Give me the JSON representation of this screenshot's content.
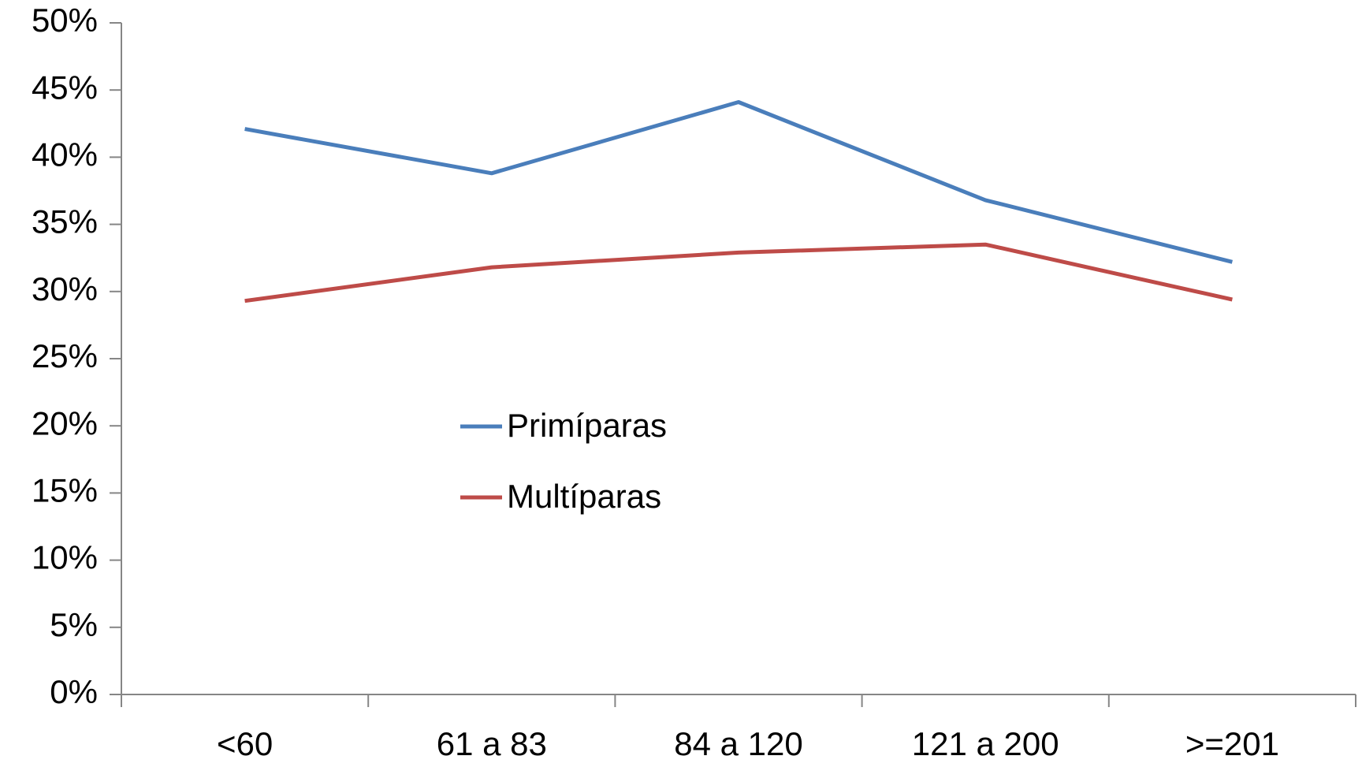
{
  "chart_data": {
    "type": "line",
    "categories": [
      "<60",
      "61 a 83",
      "84 a 120",
      "121 a 200",
      ">=201"
    ],
    "series": [
      {
        "name": "Primíparas",
        "color": "#4a7ebb",
        "values": [
          42.1,
          38.8,
          44.1,
          36.8,
          32.2
        ]
      },
      {
        "name": "Multíparas",
        "color": "#be4b48",
        "values": [
          29.3,
          31.8,
          32.9,
          33.5,
          29.4
        ]
      }
    ],
    "ylim": [
      0,
      50
    ],
    "yticks": [
      {
        "value": 0,
        "label": "0%"
      },
      {
        "value": 5,
        "label": "5%"
      },
      {
        "value": 10,
        "label": "10%"
      },
      {
        "value": 15,
        "label": "15%"
      },
      {
        "value": 20,
        "label": "20%"
      },
      {
        "value": 25,
        "label": "25%"
      },
      {
        "value": 30,
        "label": "30%"
      },
      {
        "value": 35,
        "label": "35%"
      },
      {
        "value": 40,
        "label": "40%"
      },
      {
        "value": 45,
        "label": "45%"
      },
      {
        "value": 50,
        "label": "50%"
      }
    ],
    "grid": false
  }
}
